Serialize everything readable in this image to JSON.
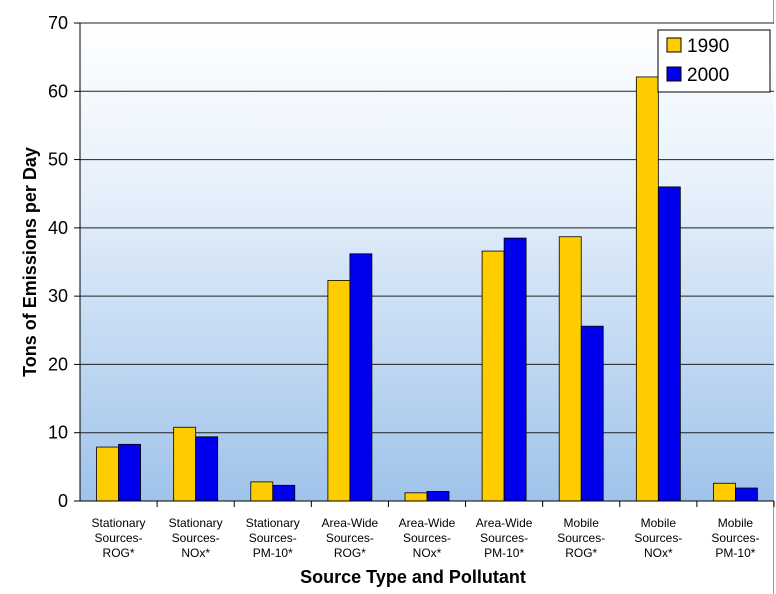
{
  "chart_data": {
    "type": "bar",
    "xlabel": "Source Type and Pollutant",
    "ylabel": "Tons of Emissions per Day",
    "ylim": [
      0,
      70
    ],
    "yticks": [
      "0",
      "10",
      "20",
      "30",
      "40",
      "50",
      "60",
      "70"
    ],
    "grid": true,
    "legend_position": "top-right",
    "categories": [
      [
        "Stationary",
        "Sources-",
        "ROG*"
      ],
      [
        "Stationary",
        "Sources-",
        "NOx*"
      ],
      [
        "Stationary",
        "Sources-",
        "PM-10*"
      ],
      [
        "Area-Wide",
        "Sources-",
        "ROG*"
      ],
      [
        "Area-Wide",
        "Sources-",
        "NOx*"
      ],
      [
        "Area-Wide",
        "Sources-",
        "PM-10*"
      ],
      [
        "Mobile",
        "Sources-",
        "ROG*"
      ],
      [
        "Mobile",
        "Sources-",
        "NOx*"
      ],
      [
        "Mobile",
        "Sources-",
        "PM-10*"
      ]
    ],
    "series": [
      {
        "name": "1990",
        "color": "#ffcc00",
        "values": [
          7.9,
          10.8,
          2.8,
          32.3,
          1.2,
          36.6,
          38.7,
          62.1,
          2.6
        ]
      },
      {
        "name": "2000",
        "color": "#0000ee",
        "values": [
          8.3,
          9.4,
          2.3,
          36.2,
          1.4,
          38.5,
          25.6,
          46.0,
          1.9
        ]
      }
    ]
  }
}
